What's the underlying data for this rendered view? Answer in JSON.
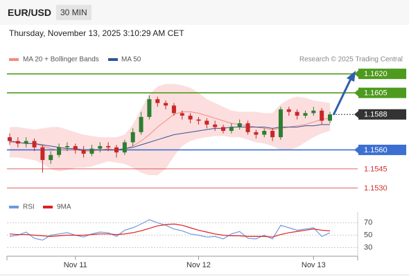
{
  "header": {
    "symbol": "EUR/USD",
    "timeframe": "30 MIN",
    "timestamp": "Thursday, November 13, 2025 3:10:29 AM CET"
  },
  "chart_data": [
    {
      "type": "candlestick",
      "source": "Research © 2025 Trading Central",
      "categories": [
        null,
        null,
        null,
        null,
        null,
        null,
        null,
        null,
        "Nov 11",
        null,
        null,
        null,
        null,
        null,
        null,
        null,
        null,
        null,
        null,
        null,
        null,
        null,
        null,
        "Nov 12",
        null,
        null,
        null,
        null,
        null,
        null,
        null,
        null,
        null,
        null,
        null,
        null,
        null,
        "Nov 13",
        null,
        null
      ],
      "open": [
        1.157,
        1.1567,
        1.1565,
        1.1567,
        1.1562,
        1.1552,
        1.1556,
        1.1562,
        1.1563,
        1.156,
        1.1557,
        1.1561,
        1.1563,
        1.1562,
        1.1558,
        1.1566,
        1.1574,
        1.1586,
        1.16,
        1.1597,
        1.1595,
        1.1589,
        1.1587,
        1.1584,
        1.1583,
        1.158,
        1.1578,
        1.1575,
        1.1578,
        1.1581,
        1.1574,
        1.1572,
        1.1575,
        1.157,
        1.1592,
        1.159,
        1.1587,
        1.1589,
        1.1591,
        1.1583
      ],
      "high": [
        1.1573,
        1.157,
        1.157,
        1.1569,
        1.1564,
        1.1559,
        1.1565,
        1.1566,
        1.1565,
        1.1563,
        1.1564,
        1.1566,
        1.1566,
        1.1564,
        1.1568,
        1.1577,
        1.159,
        1.1603,
        1.1602,
        1.1599,
        1.1597,
        1.1591,
        1.1589,
        1.1586,
        1.1585,
        1.1583,
        1.158,
        1.1581,
        1.1584,
        1.1583,
        1.1576,
        1.1577,
        1.1577,
        1.1594,
        1.1594,
        1.1592,
        1.1591,
        1.1594,
        1.1593,
        1.159
      ],
      "low": [
        1.1564,
        1.1562,
        1.1562,
        1.1559,
        1.1542,
        1.1549,
        1.1554,
        1.1559,
        1.1557,
        1.1554,
        1.1555,
        1.1558,
        1.1559,
        1.1554,
        1.1556,
        1.1563,
        1.1572,
        1.1584,
        1.1594,
        1.1592,
        1.1587,
        1.1584,
        1.1581,
        1.158,
        1.1577,
        1.1575,
        1.1573,
        1.1573,
        1.1576,
        1.1572,
        1.1569,
        1.157,
        1.1567,
        1.1568,
        1.1587,
        1.1584,
        1.1585,
        1.1587,
        1.158,
        1.1581
      ],
      "close": [
        1.1567,
        1.1565,
        1.1567,
        1.1562,
        1.1552,
        1.1556,
        1.1562,
        1.1563,
        1.156,
        1.1557,
        1.1561,
        1.1563,
        1.1562,
        1.1558,
        1.1566,
        1.1574,
        1.1586,
        1.16,
        1.1597,
        1.1595,
        1.1589,
        1.1587,
        1.1584,
        1.1583,
        1.158,
        1.1578,
        1.1575,
        1.1578,
        1.1581,
        1.1574,
        1.1572,
        1.1575,
        1.157,
        1.1592,
        1.159,
        1.1587,
        1.1589,
        1.1591,
        1.1583,
        1.1588
      ],
      "up_color": "#2e7d32",
      "down_color": "#c62828",
      "series": [
        {
          "name": "MA 20 + Bollinger Bands",
          "color": "#f28b82",
          "band_color": "#fbd3d3",
          "values": [
            1.1566,
            1.1566,
            1.1565,
            1.1565,
            1.1563,
            1.1561,
            1.156,
            1.156,
            1.156,
            1.1559,
            1.1559,
            1.156,
            1.1561,
            1.156,
            1.1561,
            1.1563,
            1.1567,
            1.1572,
            1.1578,
            1.1583,
            1.1588,
            1.159,
            1.159,
            1.1589,
            1.1587,
            1.1585,
            1.1583,
            1.1581,
            1.158,
            1.1579,
            1.1578,
            1.1577,
            1.1576,
            1.1577,
            1.1578,
            1.1579,
            1.158,
            1.1582,
            1.1584,
            1.1585
          ],
          "band_upper": [
            1.1578,
            1.1578,
            1.1577,
            1.1576,
            1.1577,
            1.1578,
            1.1578,
            1.1576,
            1.1574,
            1.1572,
            1.1571,
            1.157,
            1.157,
            1.157,
            1.1572,
            1.158,
            1.1592,
            1.1604,
            1.161,
            1.1612,
            1.1612,
            1.1611,
            1.1609,
            1.1605,
            1.16,
            1.1597,
            1.1594,
            1.1591,
            1.159,
            1.159,
            1.159,
            1.1589,
            1.1589,
            1.1596,
            1.16,
            1.1602,
            1.1601,
            1.1599,
            1.1598,
            1.1597
          ],
          "band_lower": [
            1.1554,
            1.1554,
            1.1553,
            1.1552,
            1.1549,
            1.1545,
            1.1543,
            1.1544,
            1.1546,
            1.1546,
            1.1547,
            1.1549,
            1.1551,
            1.155,
            1.1549,
            1.1546,
            1.1542,
            1.154,
            1.154,
            1.1545,
            1.1555,
            1.1563,
            1.1567,
            1.1569,
            1.157,
            1.1571,
            1.1571,
            1.157,
            1.157,
            1.1568,
            1.1566,
            1.1565,
            1.1563,
            1.156,
            1.156,
            1.1562,
            1.1566,
            1.157,
            1.1573,
            1.1575
          ]
        },
        {
          "name": "MA 50",
          "color": "#2f5597",
          "values": [
            1.1567,
            1.1566,
            1.1565,
            1.1565,
            1.1564,
            1.1563,
            1.1562,
            1.1561,
            1.1561,
            1.156,
            1.156,
            1.156,
            1.156,
            1.156,
            1.1561,
            1.1562,
            1.1564,
            1.1566,
            1.1568,
            1.157,
            1.1572,
            1.1573,
            1.1574,
            1.1575,
            1.1576,
            1.1577,
            1.1577,
            1.1578,
            1.1578,
            1.1578,
            1.1578,
            1.1578,
            1.1577,
            1.1578,
            1.1578,
            1.1578,
            1.1579,
            1.1579,
            1.158,
            1.158
          ]
        }
      ],
      "levels": [
        {
          "value": 1.162,
          "label": "1.1620",
          "color": "#4e9a1e",
          "label_style": "box",
          "line": "solid"
        },
        {
          "value": 1.1605,
          "label": "1.1605",
          "color": "#4e9a1e",
          "label_style": "box",
          "line": "solid"
        },
        {
          "value": 1.1588,
          "label": "1.1588",
          "color": "#333333",
          "label_style": "box",
          "line": "dotted"
        },
        {
          "value": 1.156,
          "label": "1.1560",
          "color": "#3c6fd1",
          "label_style": "box",
          "line": "solid"
        },
        {
          "value": 1.1545,
          "label": "1.1545",
          "color": "#d32f2f",
          "label_style": "text",
          "line": "solid"
        },
        {
          "value": 1.153,
          "label": "1.1530",
          "color": "#d32f2f",
          "label_style": "text",
          "line": "solid"
        }
      ],
      "ylim": [
        1.1522,
        1.1628
      ]
    },
    {
      "type": "line",
      "series": [
        {
          "name": "RSI",
          "color": "#6b9be0",
          "values": [
            48,
            50,
            55,
            45,
            42,
            50,
            52,
            54,
            50,
            47,
            52,
            55,
            54,
            48,
            58,
            62,
            68,
            75,
            70,
            66,
            60,
            57,
            52,
            50,
            47,
            48,
            44,
            52,
            56,
            45,
            44,
            50,
            44,
            66,
            62,
            58,
            60,
            62,
            48,
            54
          ]
        },
        {
          "name": "9MA",
          "color": "#e02020",
          "values": [
            52,
            51,
            51,
            50,
            49,
            48,
            49,
            50,
            50,
            50,
            51,
            52,
            52,
            51,
            52,
            54,
            57,
            61,
            65,
            67,
            68,
            66,
            62,
            58,
            55,
            52,
            50,
            49,
            49,
            48,
            48,
            48,
            47,
            51,
            54,
            56,
            58,
            60,
            58,
            57
          ]
        }
      ],
      "ylim": [
        16,
        82
      ],
      "yticks": [
        70,
        50,
        30
      ],
      "grid": true
    }
  ]
}
